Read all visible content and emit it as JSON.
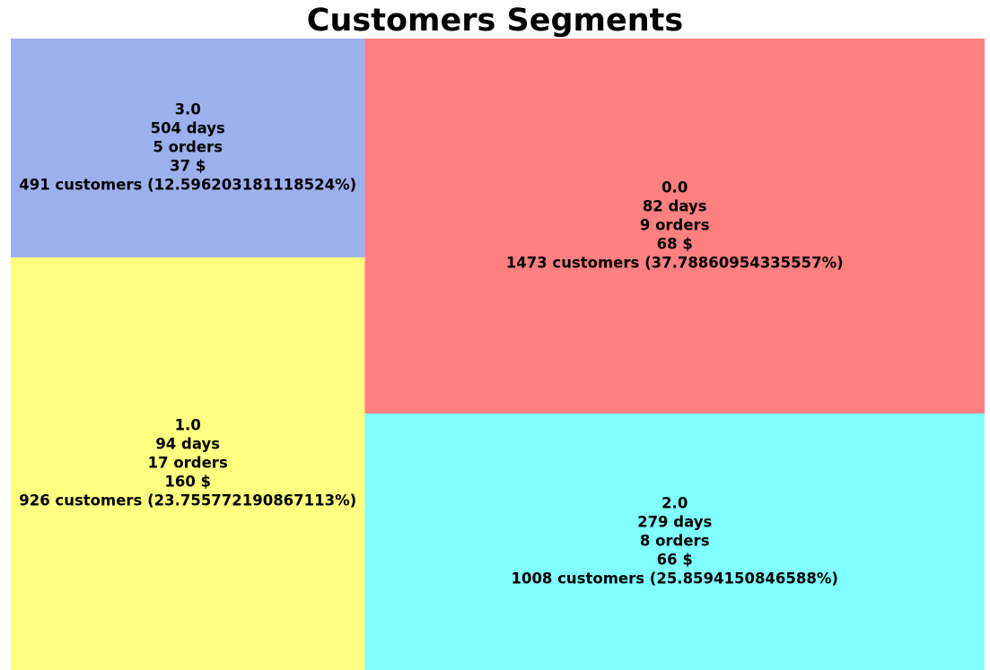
{
  "chart_data": {
    "type": "treemap",
    "title": "Customers Segments",
    "segments": [
      {
        "label": "0.0",
        "days": "82 days",
        "orders": "9 orders",
        "amount": "68 $",
        "customers_text": "1473 customers (37.78860954335557%)",
        "customers": 1473,
        "percent": 37.78860954335557,
        "color": "#ff8080"
      },
      {
        "label": "1.0",
        "days": "94 days",
        "orders": "17 orders",
        "amount": "160 $",
        "customers_text": "926 customers (23.755772190867113%)",
        "customers": 926,
        "percent": 23.755772190867113,
        "color": "#ffff80"
      },
      {
        "label": "2.0",
        "days": "279 days",
        "orders": "8 orders",
        "amount": "66 $",
        "customers_text": "1008 customers (25.8594150846588%)",
        "customers": 1008,
        "percent": 25.8594150846588,
        "color": "#80ffff"
      },
      {
        "label": "3.0",
        "days": "504 days",
        "orders": "5 orders",
        "amount": "37 $",
        "customers_text": "491 customers (12.596203181118524%)",
        "customers": 491,
        "percent": 12.596203181118524,
        "color": "#9db0ee"
      }
    ]
  }
}
